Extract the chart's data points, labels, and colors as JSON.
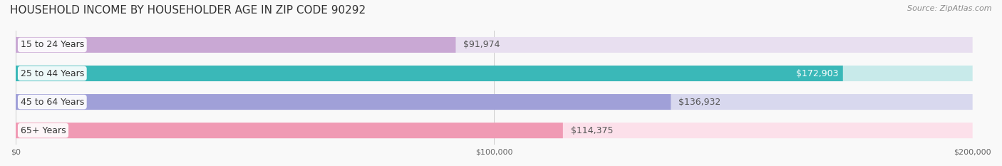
{
  "title": "HOUSEHOLD INCOME BY HOUSEHOLDER AGE IN ZIP CODE 90292",
  "source": "Source: ZipAtlas.com",
  "categories": [
    "15 to 24 Years",
    "25 to 44 Years",
    "45 to 64 Years",
    "65+ Years"
  ],
  "values": [
    91974,
    172903,
    136932,
    114375
  ],
  "bar_colors": [
    "#c9a8d4",
    "#3ab8b8",
    "#a0a0d8",
    "#f09ab4"
  ],
  "background_colors": [
    "#e8dff0",
    "#c8eaea",
    "#d8d8ee",
    "#fce0ea"
  ],
  "track_color": "#eeeeee",
  "label_bg": "#ffffff",
  "xlim": [
    0,
    200000
  ],
  "xticks": [
    0,
    100000,
    200000
  ],
  "xtick_labels": [
    "$0",
    "$100,000",
    "$200,000"
  ],
  "value_label_color_inside": "#ffffff",
  "value_label_color_outside": "#555555",
  "title_fontsize": 11,
  "source_fontsize": 8,
  "bar_label_fontsize": 9,
  "category_label_fontsize": 9,
  "xtick_fontsize": 8,
  "bar_height": 0.55,
  "bar_gap": 0.18
}
